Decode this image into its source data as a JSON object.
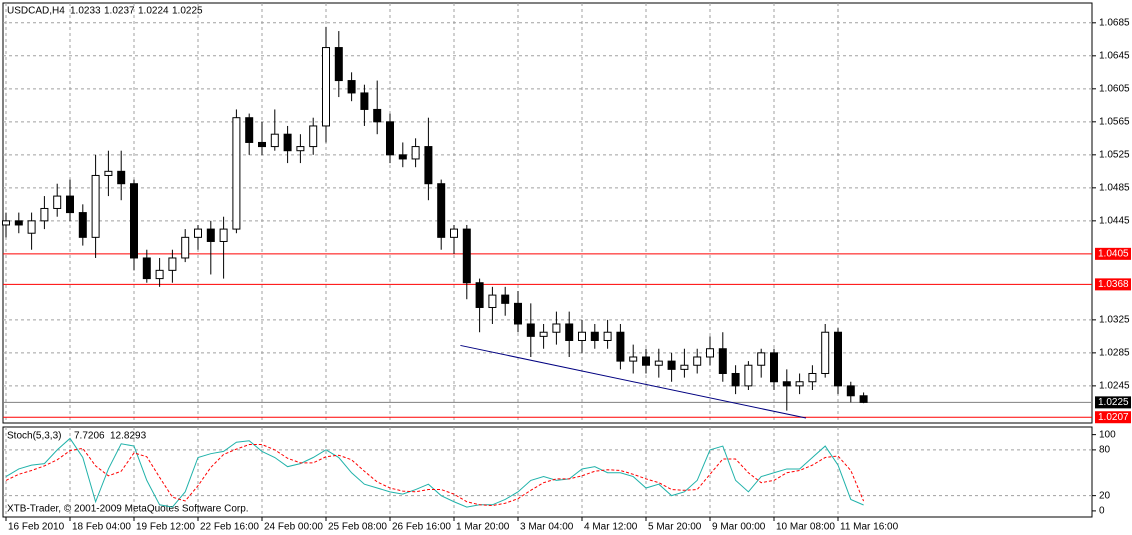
{
  "chart_data": [
    {
      "type": "candlestick",
      "title": "USDCAD,H4",
      "categories": [
        "16 Feb 2010",
        null,
        null,
        null,
        null,
        "18 Feb 04:00",
        null,
        null,
        null,
        null,
        "19 Feb 12:00",
        null,
        null,
        null,
        null,
        "22 Feb 16:00",
        null,
        null,
        null,
        null,
        "24 Feb 00:00",
        null,
        null,
        null,
        null,
        "25 Feb 08:00",
        null,
        null,
        null,
        null,
        "26 Feb 16:00",
        null,
        null,
        null,
        null,
        "1 Mar 20:00",
        null,
        null,
        null,
        null,
        "3 Mar 04:00",
        null,
        null,
        null,
        null,
        "4 Mar 12:00",
        null,
        null,
        null,
        null,
        "5 Mar 20:00",
        null,
        null,
        null,
        null,
        "9 Mar 00:00",
        null,
        null,
        null,
        null,
        "10 Mar 08:00",
        null,
        null,
        null,
        null,
        "11 Mar 16:00",
        null,
        null
      ],
      "open": [
        1.044,
        1.0445,
        1.043,
        1.0445,
        1.046,
        1.0475,
        1.0455,
        1.0425,
        1.05,
        1.0505,
        1.049,
        1.04,
        1.0375,
        1.0385,
        1.04,
        1.0425,
        1.0435,
        1.042,
        1.0435,
        1.057,
        1.054,
        1.0535,
        1.055,
        1.053,
        1.0535,
        1.056,
        1.0655,
        1.0615,
        1.06,
        1.058,
        1.0565,
        1.0525,
        1.052,
        1.0535,
        1.049,
        1.0425,
        1.0435,
        1.037,
        1.034,
        1.0355,
        1.0345,
        1.032,
        1.0305,
        1.031,
        1.032,
        1.03,
        1.031,
        1.03,
        1.031,
        1.0275,
        1.028,
        1.027,
        1.0275,
        1.0265,
        1.027,
        1.028,
        1.029,
        1.026,
        1.0245,
        1.027,
        1.0285,
        1.025,
        1.0245,
        1.025,
        1.026,
        1.031,
        1.0245,
        1.0233
      ],
      "high": [
        1.0455,
        1.0455,
        1.0455,
        1.0475,
        1.049,
        1.0495,
        1.0465,
        1.0525,
        1.053,
        1.053,
        1.0495,
        1.041,
        1.04,
        1.041,
        1.0435,
        1.044,
        1.0445,
        1.045,
        1.058,
        1.0575,
        1.0565,
        1.058,
        1.056,
        1.055,
        1.057,
        1.068,
        1.0675,
        1.0625,
        1.061,
        1.0615,
        1.0575,
        1.054,
        1.0545,
        1.057,
        1.0495,
        1.044,
        1.044,
        1.0375,
        1.0365,
        1.0365,
        1.036,
        1.0345,
        1.032,
        1.0335,
        1.0335,
        1.0325,
        1.032,
        1.0325,
        1.032,
        1.0295,
        1.029,
        1.029,
        1.0285,
        1.029,
        1.029,
        1.0305,
        1.031,
        1.027,
        1.0275,
        1.029,
        1.029,
        1.0265,
        1.026,
        1.027,
        1.032,
        1.0315,
        1.025,
        1.0237
      ],
      "low": [
        1.0425,
        1.043,
        1.041,
        1.0435,
        1.045,
        1.0445,
        1.0415,
        1.04,
        1.0475,
        1.047,
        1.0385,
        1.037,
        1.0365,
        1.037,
        1.0395,
        1.041,
        1.038,
        1.0375,
        1.043,
        1.0525,
        1.0525,
        1.053,
        1.0515,
        1.0515,
        1.0525,
        1.054,
        1.0595,
        1.059,
        1.056,
        1.055,
        1.0515,
        1.051,
        1.051,
        1.047,
        1.041,
        1.0405,
        1.035,
        1.031,
        1.032,
        1.033,
        1.031,
        1.028,
        1.029,
        1.0295,
        1.028,
        1.0285,
        1.029,
        1.029,
        1.0265,
        1.026,
        1.026,
        1.0255,
        1.025,
        1.0255,
        1.026,
        1.027,
        1.025,
        1.0235,
        1.024,
        1.0255,
        1.024,
        1.0215,
        1.0235,
        1.024,
        1.0255,
        1.0235,
        1.0225,
        1.0224
      ],
      "close": [
        1.0445,
        1.044,
        1.0445,
        1.046,
        1.0475,
        1.0455,
        1.0425,
        1.05,
        1.0505,
        1.049,
        1.04,
        1.0375,
        1.0385,
        1.04,
        1.0425,
        1.0435,
        1.042,
        1.0435,
        1.057,
        1.054,
        1.0535,
        1.055,
        1.053,
        1.0535,
        1.056,
        1.0655,
        1.0615,
        1.06,
        1.058,
        1.0565,
        1.0525,
        1.052,
        1.0535,
        1.049,
        1.0425,
        1.0435,
        1.037,
        1.034,
        1.0355,
        1.0345,
        1.032,
        1.0305,
        1.031,
        1.032,
        1.03,
        1.031,
        1.03,
        1.031,
        1.0275,
        1.028,
        1.027,
        1.0275,
        1.0265,
        1.027,
        1.028,
        1.029,
        1.026,
        1.0245,
        1.027,
        1.0285,
        1.025,
        1.0245,
        1.025,
        1.026,
        1.031,
        1.0245,
        1.0233,
        1.0225
      ],
      "ylim": [
        1.02,
        1.0709
      ],
      "yticks": [
        1.0245,
        1.0285,
        1.0325,
        1.0445,
        1.0485,
        1.0525,
        1.0565,
        1.0605,
        1.0645,
        1.0685
      ],
      "levels": [
        1.0405,
        1.0368,
        1.0207
      ],
      "level_color": "#ff0000",
      "trendline": {
        "start": [
          35.5,
          1.0294
        ],
        "end": [
          62.5,
          1.0206
        ],
        "color": "#000080"
      },
      "grid": true
    },
    {
      "type": "stochastic",
      "title": "Stoch(5,3,3)",
      "series": [
        {
          "name": "main",
          "color": "#20b2aa",
          "values": [
            45,
            55,
            60,
            62,
            80,
            95,
            70,
            12,
            55,
            88,
            85,
            40,
            8,
            5,
            25,
            70,
            75,
            78,
            90,
            92,
            78,
            70,
            58,
            62,
            70,
            80,
            70,
            50,
            35,
            30,
            25,
            22,
            28,
            35,
            20,
            12,
            5,
            8,
            8,
            15,
            25,
            40,
            45,
            40,
            42,
            55,
            58,
            50,
            50,
            45,
            30,
            35,
            20,
            25,
            40,
            80,
            85,
            40,
            25,
            45,
            50,
            55,
            55,
            70,
            85,
            60,
            15,
            7.7206
          ]
        },
        {
          "name": "signal",
          "color": "#ff0000",
          "values": [
            40,
            48,
            53,
            59,
            67,
            79,
            82,
            59,
            46,
            52,
            76,
            71,
            44,
            18,
            13,
            33,
            57,
            74,
            81,
            87,
            87,
            80,
            69,
            63,
            63,
            71,
            73,
            67,
            52,
            38,
            30,
            26,
            25,
            28,
            28,
            22,
            12,
            8,
            7,
            10,
            16,
            27,
            37,
            42,
            42,
            46,
            52,
            54,
            53,
            48,
            42,
            37,
            28,
            27,
            28,
            48,
            68,
            68,
            50,
            37,
            40,
            50,
            53,
            60,
            70,
            72,
            53,
            12.8293
          ]
        }
      ],
      "ylim": [
        -8,
        110
      ],
      "yticks": [
        0,
        20,
        80,
        100
      ],
      "copyright": "XTB-Trader, © 2001-2009 MetaQuotes Software Corp."
    }
  ]
}
